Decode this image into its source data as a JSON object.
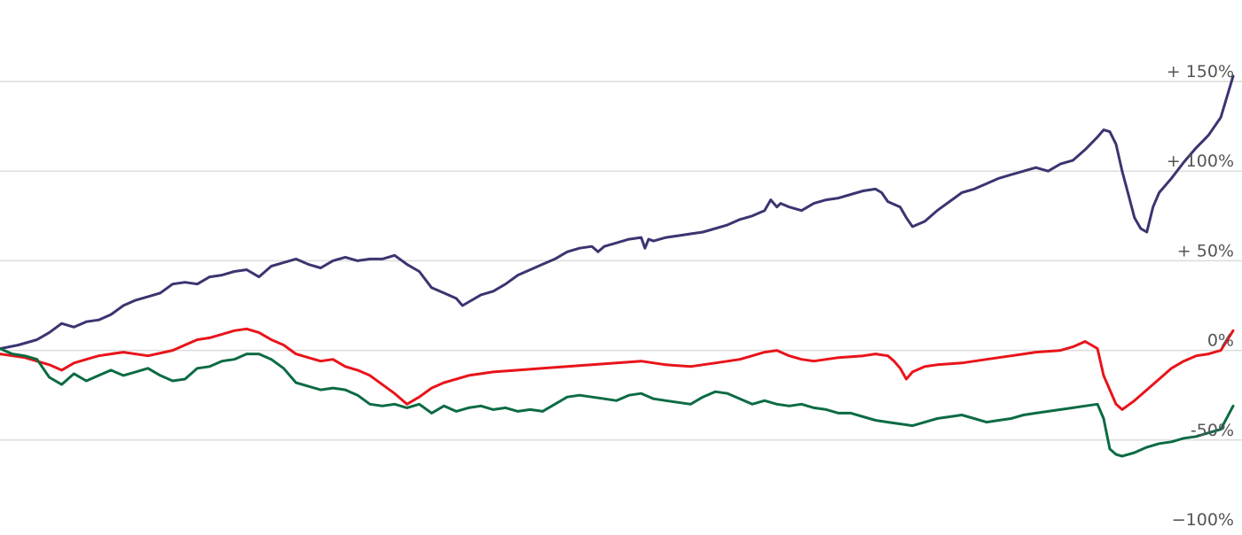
{
  "chart_data": {
    "type": "line",
    "title": "",
    "xlabel": "",
    "ylabel": "",
    "ylim": [
      -100,
      150
    ],
    "xlim": [
      0,
      100
    ],
    "y_ticks": [
      {
        "value": 150,
        "label": "+ 150%"
      },
      {
        "value": 100,
        "label": "+ 100%"
      },
      {
        "value": 50,
        "label": "+ 50%"
      },
      {
        "value": 0,
        "label": "0%"
      },
      {
        "value": -50,
        "label": "-50%"
      },
      {
        "value": -100,
        "label": "−100%"
      }
    ],
    "grid": true,
    "legend": "none",
    "series": [
      {
        "color": "#3a3570",
        "points": [
          [
            0,
            1
          ],
          [
            1.5,
            3
          ],
          [
            3,
            6
          ],
          [
            4,
            10
          ],
          [
            5,
            15
          ],
          [
            6,
            13
          ],
          [
            7,
            16
          ],
          [
            8,
            17
          ],
          [
            9,
            20
          ],
          [
            10,
            25
          ],
          [
            11,
            28
          ],
          [
            12,
            30
          ],
          [
            13,
            32
          ],
          [
            14,
            37
          ],
          [
            15,
            38
          ],
          [
            16,
            37
          ],
          [
            17,
            41
          ],
          [
            18,
            42
          ],
          [
            19,
            44
          ],
          [
            20,
            45
          ],
          [
            21,
            41
          ],
          [
            22,
            47
          ],
          [
            23,
            49
          ],
          [
            24,
            51
          ],
          [
            25,
            48
          ],
          [
            26,
            46
          ],
          [
            27,
            50
          ],
          [
            28,
            52
          ],
          [
            29,
            50
          ],
          [
            30,
            51
          ],
          [
            31,
            51
          ],
          [
            32,
            53
          ],
          [
            33,
            48
          ],
          [
            34,
            44
          ],
          [
            35,
            35
          ],
          [
            36,
            32
          ],
          [
            37,
            29
          ],
          [
            37.5,
            25
          ],
          [
            38,
            27
          ],
          [
            39,
            31
          ],
          [
            40,
            33
          ],
          [
            41,
            37
          ],
          [
            42,
            42
          ],
          [
            43,
            45
          ],
          [
            44,
            48
          ],
          [
            45,
            51
          ],
          [
            46,
            55
          ],
          [
            47,
            57
          ],
          [
            48,
            58
          ],
          [
            48.5,
            55
          ],
          [
            49,
            58
          ],
          [
            50,
            60
          ],
          [
            51,
            62
          ],
          [
            52,
            63
          ],
          [
            52.3,
            57
          ],
          [
            52.6,
            62
          ],
          [
            53,
            61
          ],
          [
            54,
            63
          ],
          [
            55,
            64
          ],
          [
            56,
            65
          ],
          [
            57,
            66
          ],
          [
            58,
            68
          ],
          [
            59,
            70
          ],
          [
            60,
            73
          ],
          [
            61,
            75
          ],
          [
            62,
            78
          ],
          [
            62.5,
            84
          ],
          [
            63,
            80
          ],
          [
            63.3,
            82
          ],
          [
            64,
            80
          ],
          [
            65,
            78
          ],
          [
            66,
            82
          ],
          [
            67,
            84
          ],
          [
            68,
            85
          ],
          [
            69,
            87
          ],
          [
            70,
            89
          ],
          [
            71,
            90
          ],
          [
            71.5,
            88
          ],
          [
            72,
            83
          ],
          [
            73,
            80
          ],
          [
            73.5,
            74
          ],
          [
            74,
            69
          ],
          [
            75,
            72
          ],
          [
            76,
            78
          ],
          [
            77,
            83
          ],
          [
            78,
            88
          ],
          [
            79,
            90
          ],
          [
            80,
            93
          ],
          [
            81,
            96
          ],
          [
            82,
            98
          ],
          [
            83,
            100
          ],
          [
            84,
            102
          ],
          [
            85,
            100
          ],
          [
            86,
            104
          ],
          [
            87,
            106
          ],
          [
            88,
            112
          ],
          [
            89,
            119
          ],
          [
            89.5,
            123
          ],
          [
            90,
            122
          ],
          [
            90.5,
            115
          ],
          [
            91,
            100
          ],
          [
            91.5,
            87
          ],
          [
            92,
            74
          ],
          [
            92.5,
            68
          ],
          [
            93,
            66
          ],
          [
            93.5,
            80
          ],
          [
            94,
            88
          ],
          [
            95,
            96
          ],
          [
            96,
            105
          ],
          [
            97,
            113
          ],
          [
            98,
            120
          ],
          [
            99,
            130
          ],
          [
            100,
            153
          ]
        ]
      },
      {
        "color": "#e8141a",
        "points": [
          [
            0,
            -2
          ],
          [
            2,
            -4
          ],
          [
            4,
            -8
          ],
          [
            5,
            -11
          ],
          [
            6,
            -7
          ],
          [
            7,
            -5
          ],
          [
            8,
            -3
          ],
          [
            9,
            -2
          ],
          [
            10,
            -1
          ],
          [
            12,
            -3
          ],
          [
            14,
            0
          ],
          [
            15,
            3
          ],
          [
            16,
            6
          ],
          [
            17,
            7
          ],
          [
            18,
            9
          ],
          [
            19,
            11
          ],
          [
            20,
            12
          ],
          [
            21,
            10
          ],
          [
            22,
            6
          ],
          [
            23,
            3
          ],
          [
            24,
            -2
          ],
          [
            25,
            -4
          ],
          [
            26,
            -6
          ],
          [
            27,
            -5
          ],
          [
            28,
            -9
          ],
          [
            29,
            -11
          ],
          [
            30,
            -14
          ],
          [
            31,
            -19
          ],
          [
            32,
            -24
          ],
          [
            33,
            -30
          ],
          [
            34,
            -26
          ],
          [
            35,
            -21
          ],
          [
            36,
            -18
          ],
          [
            37,
            -16
          ],
          [
            38,
            -14
          ],
          [
            39,
            -13
          ],
          [
            40,
            -12
          ],
          [
            42,
            -11
          ],
          [
            44,
            -10
          ],
          [
            46,
            -9
          ],
          [
            48,
            -8
          ],
          [
            50,
            -7
          ],
          [
            52,
            -6
          ],
          [
            54,
            -8
          ],
          [
            56,
            -9
          ],
          [
            58,
            -7
          ],
          [
            60,
            -5
          ],
          [
            61,
            -3
          ],
          [
            62,
            -1
          ],
          [
            63,
            0
          ],
          [
            64,
            -3
          ],
          [
            65,
            -5
          ],
          [
            66,
            -6
          ],
          [
            68,
            -4
          ],
          [
            70,
            -3
          ],
          [
            71,
            -2
          ],
          [
            72,
            -3
          ],
          [
            72.5,
            -6
          ],
          [
            73,
            -10
          ],
          [
            73.5,
            -16
          ],
          [
            74,
            -12
          ],
          [
            75,
            -9
          ],
          [
            76,
            -8
          ],
          [
            78,
            -7
          ],
          [
            80,
            -5
          ],
          [
            82,
            -3
          ],
          [
            84,
            -1
          ],
          [
            86,
            0
          ],
          [
            87,
            2
          ],
          [
            88,
            5
          ],
          [
            88.5,
            3
          ],
          [
            89,
            1
          ],
          [
            89.5,
            -14
          ],
          [
            90,
            -22
          ],
          [
            90.5,
            -30
          ],
          [
            91,
            -33
          ],
          [
            92,
            -28
          ],
          [
            93,
            -22
          ],
          [
            94,
            -16
          ],
          [
            95,
            -10
          ],
          [
            96,
            -6
          ],
          [
            97,
            -3
          ],
          [
            98,
            -2
          ],
          [
            99,
            0
          ],
          [
            100,
            11
          ]
        ]
      },
      {
        "color": "#0c6b43",
        "points": [
          [
            0,
            1
          ],
          [
            1,
            -2
          ],
          [
            2,
            -3
          ],
          [
            3,
            -5
          ],
          [
            4,
            -15
          ],
          [
            5,
            -19
          ],
          [
            6,
            -13
          ],
          [
            7,
            -17
          ],
          [
            8,
            -14
          ],
          [
            9,
            -11
          ],
          [
            10,
            -14
          ],
          [
            11,
            -12
          ],
          [
            12,
            -10
          ],
          [
            13,
            -14
          ],
          [
            14,
            -17
          ],
          [
            15,
            -16
          ],
          [
            16,
            -10
          ],
          [
            17,
            -9
          ],
          [
            18,
            -6
          ],
          [
            19,
            -5
          ],
          [
            20,
            -2
          ],
          [
            21,
            -2
          ],
          [
            22,
            -5
          ],
          [
            23,
            -10
          ],
          [
            24,
            -18
          ],
          [
            25,
            -20
          ],
          [
            26,
            -22
          ],
          [
            27,
            -21
          ],
          [
            28,
            -22
          ],
          [
            29,
            -25
          ],
          [
            30,
            -30
          ],
          [
            31,
            -31
          ],
          [
            32,
            -30
          ],
          [
            33,
            -32
          ],
          [
            34,
            -30
          ],
          [
            35,
            -35
          ],
          [
            36,
            -31
          ],
          [
            37,
            -34
          ],
          [
            38,
            -32
          ],
          [
            39,
            -31
          ],
          [
            40,
            -33
          ],
          [
            41,
            -32
          ],
          [
            42,
            -34
          ],
          [
            43,
            -33
          ],
          [
            44,
            -34
          ],
          [
            45,
            -30
          ],
          [
            46,
            -26
          ],
          [
            47,
            -25
          ],
          [
            48,
            -26
          ],
          [
            49,
            -27
          ],
          [
            50,
            -28
          ],
          [
            51,
            -25
          ],
          [
            52,
            -24
          ],
          [
            53,
            -27
          ],
          [
            54,
            -28
          ],
          [
            55,
            -29
          ],
          [
            56,
            -30
          ],
          [
            57,
            -26
          ],
          [
            58,
            -23
          ],
          [
            59,
            -24
          ],
          [
            60,
            -27
          ],
          [
            61,
            -30
          ],
          [
            62,
            -28
          ],
          [
            63,
            -30
          ],
          [
            64,
            -31
          ],
          [
            65,
            -30
          ],
          [
            66,
            -32
          ],
          [
            67,
            -33
          ],
          [
            68,
            -35
          ],
          [
            69,
            -35
          ],
          [
            70,
            -37
          ],
          [
            71,
            -39
          ],
          [
            72,
            -40
          ],
          [
            73,
            -41
          ],
          [
            74,
            -42
          ],
          [
            75,
            -40
          ],
          [
            76,
            -38
          ],
          [
            77,
            -37
          ],
          [
            78,
            -36
          ],
          [
            79,
            -38
          ],
          [
            80,
            -40
          ],
          [
            81,
            -39
          ],
          [
            82,
            -38
          ],
          [
            83,
            -36
          ],
          [
            84,
            -35
          ],
          [
            85,
            -34
          ],
          [
            86,
            -33
          ],
          [
            87,
            -32
          ],
          [
            88,
            -31
          ],
          [
            89,
            -30
          ],
          [
            89.5,
            -38
          ],
          [
            90,
            -55
          ],
          [
            90.5,
            -58
          ],
          [
            91,
            -59
          ],
          [
            92,
            -57
          ],
          [
            93,
            -54
          ],
          [
            94,
            -52
          ],
          [
            95,
            -51
          ],
          [
            96,
            -49
          ],
          [
            97,
            -48
          ],
          [
            98,
            -46
          ],
          [
            99,
            -44
          ],
          [
            100,
            -31
          ]
        ]
      }
    ]
  }
}
